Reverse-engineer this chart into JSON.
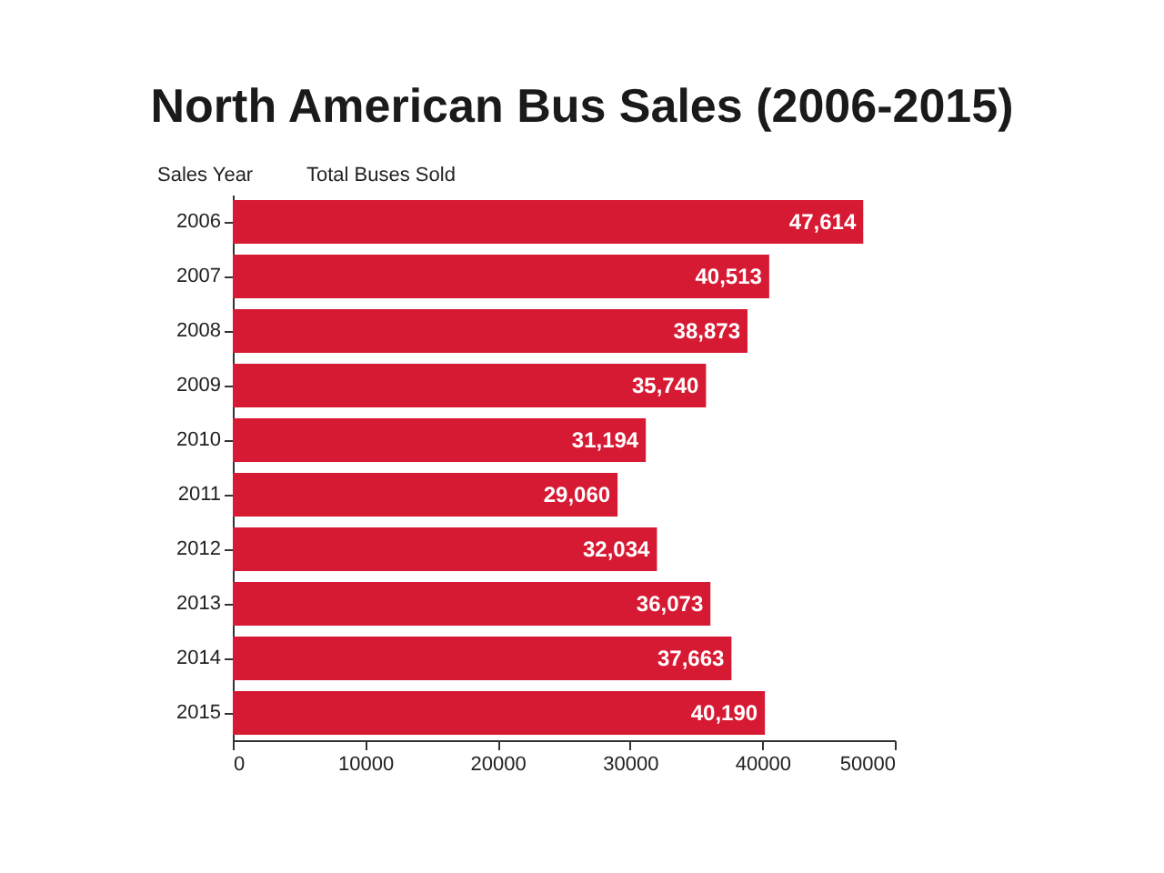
{
  "chart_data": {
    "type": "bar",
    "title": "North American Bus Sales (2006-2015)",
    "ylabel": "Sales Year",
    "xlabel": "Total Buses Sold",
    "orientation": "horizontal",
    "categories": [
      "2006",
      "2007",
      "2008",
      "2009",
      "2010",
      "2011",
      "2012",
      "2013",
      "2014",
      "2015"
    ],
    "values": [
      47614,
      40513,
      38873,
      35740,
      31194,
      29060,
      32034,
      36073,
      37663,
      40190
    ],
    "value_labels": [
      "47,614",
      "40,513",
      "38,873",
      "35,740",
      "31,194",
      "29,060",
      "32,034",
      "36,073",
      "37,663",
      "40,190"
    ],
    "color": "#d71a33",
    "xlim": [
      0,
      50000
    ],
    "xticks": [
      0,
      10000,
      20000,
      30000,
      40000,
      50000
    ],
    "grid": false
  }
}
